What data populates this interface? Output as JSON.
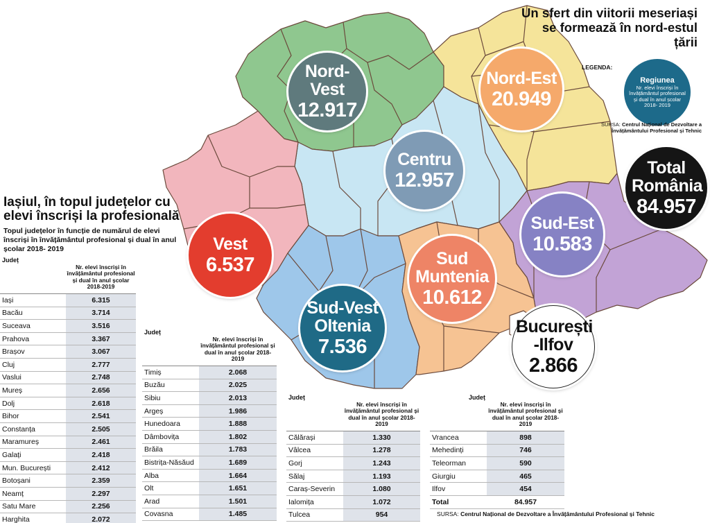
{
  "headline": "Un sfert din viitorii meseriași se formează în nord-estul țării",
  "legend": {
    "label": "LEGENDA:",
    "title": "Regiunea",
    "description": "Nr. elevi înscriși în învățământul profesional și dual în anul școlar 2018- 2019"
  },
  "source_top": {
    "prefix": "SURSA:",
    "text": "Centrul Național de Dezvoltare a Învățământului Profesional și Tehnic"
  },
  "regions": [
    {
      "name": "Nord-Vest",
      "value": "12.917",
      "color": "#5f7a7d",
      "fill": "#8fc78f"
    },
    {
      "name": "Nord-Est",
      "value": "20.949",
      "color": "#f5a96b",
      "fill": "#f5e49a"
    },
    {
      "name": "Centru",
      "value": "12.957",
      "color": "#7f9bb5",
      "fill": "#c8e6f3"
    },
    {
      "name": "Vest",
      "value": "6.537",
      "color": "#e33d2e",
      "fill": "#f2b6bd"
    },
    {
      "name": "Sud-Est",
      "value": "10.583",
      "color": "#8682c4",
      "fill": "#c2a3d6"
    },
    {
      "name": "Sud-Vest Oltenia",
      "value": "7.536",
      "color": "#1f6a86",
      "fill": "#9ec7ea"
    },
    {
      "name": "Sud Muntenia",
      "value": "10.612",
      "color": "#ee8466",
      "fill": "#f6c393"
    },
    {
      "name": "București -Ilfov",
      "value": "2.866",
      "color": "#ffffff",
      "fill": "#f6c393"
    }
  ],
  "total": {
    "label": "Total România",
    "value": "84.957",
    "color": "#151515"
  },
  "left_title": "Iașiul, în topul județelor cu elevi înscriși la profesională",
  "left_subtitle": "Topul județelor în funcție de numărul de elevi înscriși în învățământul profesional și dual în anul școlar 2018- 2019",
  "table_header": {
    "county": "Județ",
    "value": "Nr. elevi înscriși în învățământul profesional și dual în anul școlar 2018-2019"
  },
  "tables": [
    {
      "rows": [
        {
          "name": "Iași",
          "value": "6.315"
        },
        {
          "name": "Bacău",
          "value": "3.714"
        },
        {
          "name": "Suceava",
          "value": "3.516"
        },
        {
          "name": "Prahova",
          "value": "3.367"
        },
        {
          "name": "Brașov",
          "value": "3.067"
        },
        {
          "name": "Cluj",
          "value": "2.777"
        },
        {
          "name": "Vaslui",
          "value": "2.748"
        },
        {
          "name": "Mureș",
          "value": "2.656"
        },
        {
          "name": "Dolj",
          "value": "2.618"
        },
        {
          "name": "Bihor",
          "value": "2.541"
        },
        {
          "name": "Constanța",
          "value": "2.505"
        },
        {
          "name": "Maramureș",
          "value": "2.461"
        },
        {
          "name": "Galați",
          "value": "2.418"
        },
        {
          "name": "Mun. București",
          "value": "2.412"
        },
        {
          "name": "Botoșani",
          "value": "2.359"
        },
        {
          "name": "Neamț",
          "value": "2.297"
        },
        {
          "name": "Satu Mare",
          "value": "2.256"
        },
        {
          "name": "Harghita",
          "value": "2.072"
        }
      ]
    },
    {
      "rows": [
        {
          "name": "Timiș",
          "value": "2.068"
        },
        {
          "name": "Buzău",
          "value": "2.025"
        },
        {
          "name": "Sibiu",
          "value": "2.013"
        },
        {
          "name": "Argeș",
          "value": "1.986"
        },
        {
          "name": "Hunedoara",
          "value": "1.888"
        },
        {
          "name": "Dâmbovița",
          "value": "1.802"
        },
        {
          "name": "Brăila",
          "value": "1.783"
        },
        {
          "name": "Bistrița-Năsăud",
          "value": "1.689"
        },
        {
          "name": "Alba",
          "value": "1.664"
        },
        {
          "name": "Olt",
          "value": "1.651"
        },
        {
          "name": "Arad",
          "value": "1.501"
        },
        {
          "name": "Covasna",
          "value": "1.485"
        }
      ]
    },
    {
      "rows": [
        {
          "name": "Călărași",
          "value": "1.330"
        },
        {
          "name": "Vâlcea",
          "value": "1.278"
        },
        {
          "name": "Gorj",
          "value": "1.243"
        },
        {
          "name": "Sălaj",
          "value": "1.193"
        },
        {
          "name": "Caraș-Severin",
          "value": "1.080"
        },
        {
          "name": "Ialomița",
          "value": "1.072"
        },
        {
          "name": "Tulcea",
          "value": "954"
        }
      ]
    },
    {
      "rows": [
        {
          "name": "Vrancea",
          "value": "898"
        },
        {
          "name": "Mehedinți",
          "value": "746"
        },
        {
          "name": "Teleorman",
          "value": "590"
        },
        {
          "name": "Giurgiu",
          "value": "465"
        },
        {
          "name": "Ilfov",
          "value": "454"
        },
        {
          "name": "Total",
          "value": "84.957"
        }
      ]
    }
  ],
  "source_bottom": {
    "prefix": "SURSA:",
    "text": "Centrul Național de Dezvoltare a Învățământului Profesional și Tehnic"
  }
}
